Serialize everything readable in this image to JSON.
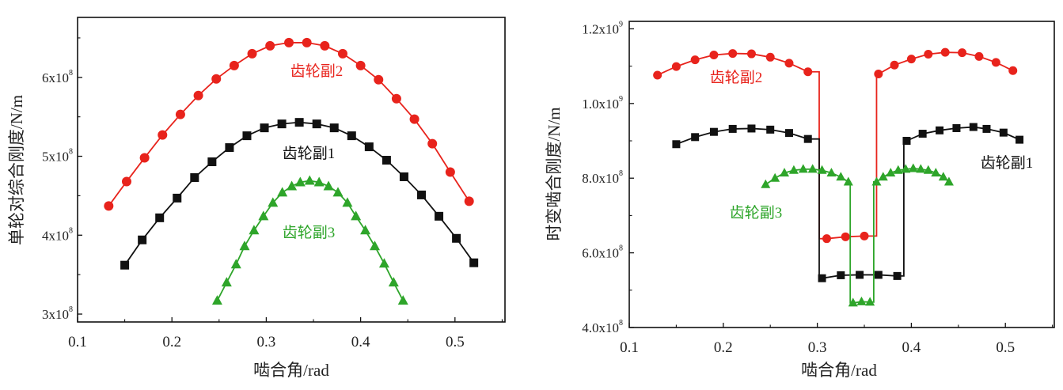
{
  "chart_data": [
    {
      "type": "line",
      "title": "",
      "xlabel": "啮合角/rad",
      "ylabel": "单轮对综合刚度/N/m",
      "xlim": [
        0.1,
        0.553
      ],
      "ylim": [
        290000000.0,
        676000000.0
      ],
      "x_ticks": [
        0.1,
        0.2,
        0.3,
        0.4,
        0.5
      ],
      "x_tick_labels": [
        "0.1",
        "0.2",
        "0.3",
        "0.4",
        "0.5"
      ],
      "y_ticks": [
        300000000.0,
        400000000.0,
        500000000.0,
        600000000.0
      ],
      "y_tick_labels": [
        {
          "base": "3x10",
          "exp": "8"
        },
        {
          "base": "4x10",
          "exp": "8"
        },
        {
          "base": "5x10",
          "exp": "8"
        },
        {
          "base": "6x10",
          "exp": "8"
        }
      ],
      "grid": false,
      "series": [
        {
          "name": "齿轮副2",
          "color": "#e8231c",
          "marker": "circle",
          "x": [
            0.133,
            0.152,
            0.171,
            0.19,
            0.209,
            0.228,
            0.247,
            0.266,
            0.285,
            0.304,
            0.324,
            0.343,
            0.362,
            0.381,
            0.4,
            0.419,
            0.438,
            0.457,
            0.476,
            0.495,
            0.515
          ],
          "y": [
            437000000.0,
            468000000.0,
            498000000.0,
            527000000.0,
            553000000.0,
            577000000.0,
            598000000.0,
            615000000.0,
            630000000.0,
            640000000.0,
            644000000.0,
            644000000.0,
            640000000.0,
            630000000.0,
            615000000.0,
            597000000.0,
            573000000.0,
            547000000.0,
            516000000.0,
            480000000.0,
            443000000.0
          ],
          "step_x": []
        },
        {
          "name": "齿轮副1",
          "color": "#111111",
          "marker": "square",
          "x": [
            0.15,
            0.1685,
            0.187,
            0.2055,
            0.224,
            0.2425,
            0.261,
            0.2795,
            0.298,
            0.3165,
            0.335,
            0.3535,
            0.372,
            0.3905,
            0.409,
            0.4275,
            0.446,
            0.4645,
            0.483,
            0.5015,
            0.52
          ],
          "y": [
            362000000.0,
            394000000.0,
            422000000.0,
            447000000.0,
            473000000.0,
            493000000.0,
            511000000.0,
            526000000.0,
            536000000.0,
            541000000.0,
            543000000.0,
            541000000.0,
            536000000.0,
            526000000.0,
            512000000.0,
            495000000.0,
            474000000.0,
            451000000.0,
            424000000.0,
            396000000.0,
            365000000.0
          ],
          "step_x": []
        },
        {
          "name": "齿轮副3",
          "color": "#2ea52a",
          "marker": "triangle",
          "x": [
            0.248,
            0.258,
            0.268,
            0.277,
            0.287,
            0.297,
            0.307,
            0.317,
            0.327,
            0.336,
            0.346,
            0.356,
            0.366,
            0.376,
            0.386,
            0.395,
            0.405,
            0.415,
            0.425,
            0.435,
            0.445
          ],
          "y": [
            317000000.0,
            340000000.0,
            363000000.0,
            386000000.0,
            406000000.0,
            424000000.0,
            441000000.0,
            454000000.0,
            462000000.0,
            467000000.0,
            469000000.0,
            467000000.0,
            462000000.0,
            454000000.0,
            441000000.0,
            424000000.0,
            406000000.0,
            386000000.0,
            364000000.0,
            340000000.0,
            317000000.0
          ],
          "step_x": []
        }
      ],
      "annotations": [
        {
          "text": "齿轮副2",
          "color": "#e8231c"
        },
        {
          "text": "齿轮副1",
          "color": "#111111"
        },
        {
          "text": "齿轮副3",
          "color": "#2ea52a"
        }
      ]
    },
    {
      "type": "line",
      "title": "",
      "xlabel": "啮合角/rad",
      "ylabel": "时变啮合刚度/N/m",
      "xlim": [
        0.1,
        0.552
      ],
      "ylim": [
        400000000.0,
        1220000000.0
      ],
      "x_ticks": [
        0.1,
        0.2,
        0.3,
        0.4,
        0.5
      ],
      "x_tick_labels": [
        "0.1",
        "0.2",
        "0.3",
        "0.4",
        "0.5"
      ],
      "y_ticks": [
        400000000.0,
        600000000.0,
        800000000.0,
        1000000000.0,
        1200000000.0
      ],
      "y_tick_labels": [
        {
          "base": "4.0x10",
          "exp": "8"
        },
        {
          "base": "6.0x10",
          "exp": "8"
        },
        {
          "base": "8.0x10",
          "exp": "8"
        },
        {
          "base": "1.0x10",
          "exp": "9"
        },
        {
          "base": "1.2x10",
          "exp": "9"
        }
      ],
      "grid": false,
      "series": [
        {
          "name": "齿轮副2",
          "color": "#e8231c",
          "marker": "circle",
          "x": [
            0.13,
            0.15,
            0.17,
            0.19,
            0.21,
            0.23,
            0.25,
            0.27,
            0.29,
            0.31,
            0.33,
            0.35,
            0.365,
            0.382,
            0.4,
            0.418,
            0.436,
            0.454,
            0.472,
            0.49,
            0.508
          ],
          "y": [
            1076000000.0,
            1099000000.0,
            1117000000.0,
            1130000000.0,
            1134000000.0,
            1133000000.0,
            1124000000.0,
            1108000000.0,
            1085000000.0,
            638000000.0,
            643000000.0,
            645000000.0,
            1079000000.0,
            1103000000.0,
            1119000000.0,
            1132000000.0,
            1137000000.0,
            1136000000.0,
            1126000000.0,
            1110000000.0,
            1088000000.0
          ],
          "step_x": [
            0.302,
            0.363
          ]
        },
        {
          "name": "齿轮副1",
          "color": "#111111",
          "marker": "square",
          "x": [
            0.15,
            0.17,
            0.19,
            0.21,
            0.23,
            0.25,
            0.27,
            0.29,
            0.305,
            0.325,
            0.345,
            0.365,
            0.385,
            0.395,
            0.412,
            0.43,
            0.448,
            0.466,
            0.48,
            0.498,
            0.515
          ],
          "y": [
            891000000.0,
            910000000.0,
            924000000.0,
            932000000.0,
            933000000.0,
            930000000.0,
            921000000.0,
            905000000.0,
            532000000.0,
            540000000.0,
            541000000.0,
            541000000.0,
            538000000.0,
            900000000.0,
            919000000.0,
            928000000.0,
            934000000.0,
            937000000.0,
            932000000.0,
            922000000.0,
            903000000.0
          ],
          "step_x": [
            0.302,
            0.392
          ]
        },
        {
          "name": "齿轮副3",
          "color": "#2ea52a",
          "marker": "triangle",
          "x": [
            0.245,
            0.255,
            0.265,
            0.275,
            0.285,
            0.295,
            0.305,
            0.315,
            0.325,
            0.333,
            0.338,
            0.347,
            0.356,
            0.363,
            0.37,
            0.378,
            0.386,
            0.394,
            0.402,
            0.41,
            0.418,
            0.426,
            0.434,
            0.44
          ],
          "y": [
            783000000.0,
            800000000.0,
            814000000.0,
            821000000.0,
            824000000.0,
            824000000.0,
            821000000.0,
            814000000.0,
            803000000.0,
            790000000.0,
            466000000.0,
            469000000.0,
            468000000.0,
            790000000.0,
            803000000.0,
            814000000.0,
            821000000.0,
            824000000.0,
            826000000.0,
            824000000.0,
            821000000.0,
            814000000.0,
            803000000.0,
            790000000.0
          ],
          "step_x": [
            0.335,
            0.36
          ]
        }
      ],
      "annotations": [
        {
          "text": "齿轮副2",
          "color": "#e8231c"
        },
        {
          "text": "齿轮副1",
          "color": "#111111"
        },
        {
          "text": "齿轮副3",
          "color": "#2ea52a"
        }
      ]
    }
  ]
}
